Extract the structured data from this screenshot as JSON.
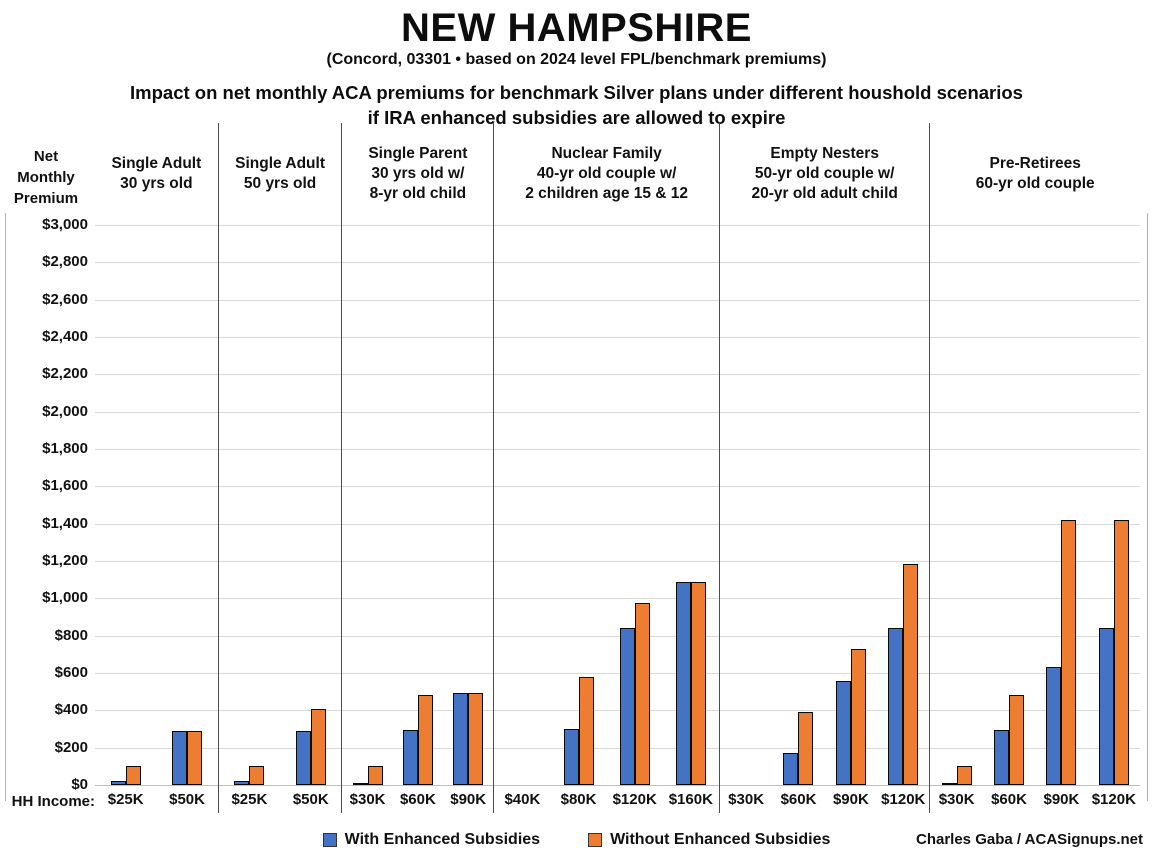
{
  "header": {
    "title": "NEW HAMPSHIRE",
    "subtitle": "(Concord, 03301 • based on 2024 level FPL/benchmark premiums)",
    "caption": "Impact on net monthly ACA premiums for benchmark Silver plans under different houshold scenarios\nif IRA enhanced subsidies are allowed to expire"
  },
  "axis": {
    "y_title": "Net\nMonthly\nPremium",
    "hh_income_label": "HH Income:"
  },
  "legend": {
    "items": [
      {
        "label": "With Enhanced Subsidies",
        "color": "#4472c4"
      },
      {
        "label": "Without Enhanced Subsidies",
        "color": "#ed7d31"
      }
    ]
  },
  "credit": "Charles Gaba / ACASignups.net",
  "chart_data": {
    "type": "bar",
    "title": "NEW HAMPSHIRE",
    "subtitle": "(Concord, 03301 • based on 2024 level FPL/benchmark premiums)",
    "description": "Impact on net monthly ACA premiums for benchmark Silver plans under different houshold scenarios if IRA enhanced subsidies are allowed to expire",
    "ylabel": "Net Monthly Premium",
    "xlabel": "HH Income",
    "ylim": [
      0,
      3000
    ],
    "ytick_step": 200,
    "grid": true,
    "legend_position": "bottom",
    "series_names": [
      "With Enhanced Subsidies",
      "Without Enhanced Subsidies"
    ],
    "colors": {
      "with_enhanced": "#4472c4",
      "without_enhanced": "#ed7d31"
    },
    "groups": [
      {
        "title": "Single Adult\n30 yrs old",
        "categories": [
          "$25K",
          "$50K"
        ],
        "with_enhanced": [
          20,
          290
        ],
        "without_enhanced": [
          100,
          290
        ]
      },
      {
        "title": "Single Adult\n50 yrs old",
        "categories": [
          "$25K",
          "$50K"
        ],
        "with_enhanced": [
          20,
          290
        ],
        "without_enhanced": [
          100,
          405
        ]
      },
      {
        "title": "Single Parent\n30 yrs old w/\n8-yr old child",
        "categories": [
          "$30K",
          "$60K",
          "$90K"
        ],
        "with_enhanced": [
          10,
          295,
          495
        ],
        "without_enhanced": [
          100,
          480,
          495
        ]
      },
      {
        "title": "Nuclear Family\n40-yr old couple w/\n2 children age 15 & 12",
        "categories": [
          "$40K",
          "$80K",
          "$120K",
          "$160K"
        ],
        "with_enhanced": [
          0,
          300,
          840,
          1085
        ],
        "without_enhanced": [
          0,
          580,
          975,
          1085
        ]
      },
      {
        "title": "Empty Nesters\n50-yr old couple w/\n20-yr old adult child",
        "categories": [
          "$30K",
          "$60K",
          "$90K",
          "$120K"
        ],
        "with_enhanced": [
          0,
          170,
          555,
          840
        ],
        "without_enhanced": [
          0,
          390,
          730,
          1185
        ]
      },
      {
        "title": "Pre-Retirees\n60-yr old couple",
        "categories": [
          "$30K",
          "$60K",
          "$90K",
          "$120K"
        ],
        "with_enhanced": [
          10,
          295,
          630,
          840
        ],
        "without_enhanced": [
          100,
          480,
          1420,
          1420
        ]
      }
    ]
  }
}
